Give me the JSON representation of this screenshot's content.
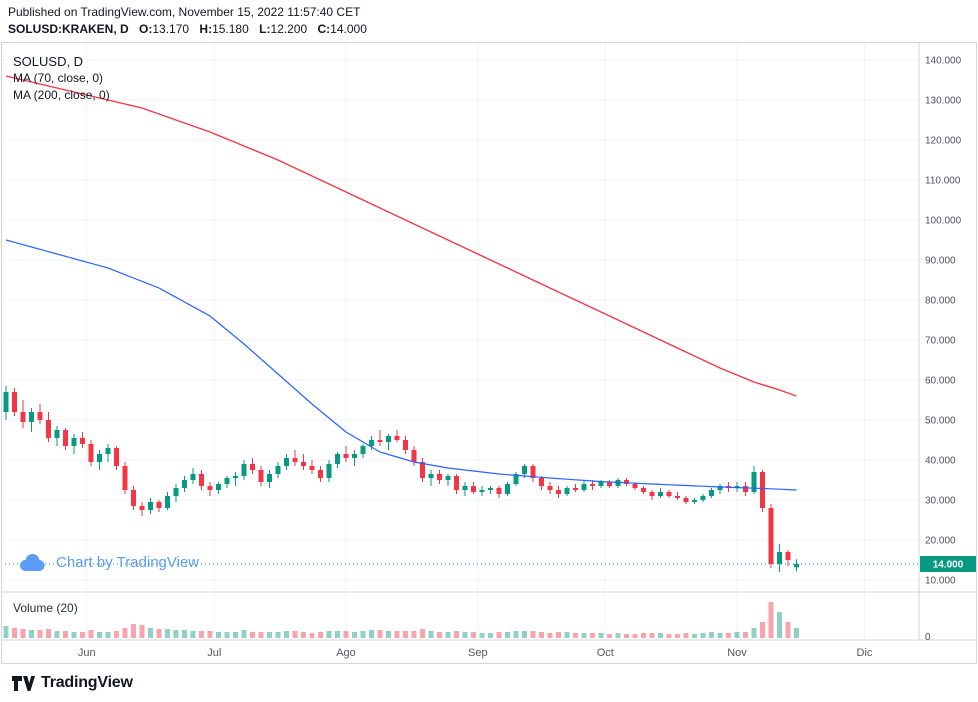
{
  "header": {
    "published": "Published on TradingView.com, November 15, 2022 11:57:40 CET",
    "symbol": "SOLUSD:KRAKEN, D",
    "ohlc": [
      {
        "label": "O:",
        "value": "13.170"
      },
      {
        "label": "H:",
        "value": "15.180"
      },
      {
        "label": "L:",
        "value": "12.200"
      },
      {
        "label": "C:",
        "value": "14.000"
      }
    ]
  },
  "legend": {
    "symbol": "SOLUSD, D",
    "ma70": "MA (70, close, 0)",
    "ma200": "MA (200, close, 0)"
  },
  "watermark": {
    "text": "Chart by TradingView"
  },
  "volume": {
    "label": "Volume (20)",
    "zero": "0"
  },
  "price_axis": {
    "last_price_label": "14.000"
  },
  "time_axis": {
    "months": [
      {
        "label": "Jun",
        "day": 19
      },
      {
        "label": "Jul",
        "day": 49
      },
      {
        "label": "Ago",
        "day": 80
      },
      {
        "label": "Sep",
        "day": 111
      },
      {
        "label": "Oct",
        "day": 141
      },
      {
        "label": "Nov",
        "day": 172
      },
      {
        "label": "Dic",
        "day": 202
      }
    ]
  },
  "footer": {
    "brand": "TradingView"
  },
  "colors": {
    "up": "#089981",
    "down": "#f23645",
    "ma70": "#f23645",
    "ma200": "#2962ff",
    "grid": "#f0f3fa",
    "border": "#d1d4dc",
    "watermark": "#5b9cf6",
    "axis_text": "#4c525e",
    "text": "#131722"
  },
  "chart_data": {
    "type": "candlestick",
    "symbol": "SOLUSD",
    "exchange": "KRAKEN",
    "interval": "D",
    "last": {
      "open": 13.17,
      "high": 15.18,
      "low": 12.2,
      "close": 14.0
    },
    "last_price": 14.0,
    "y_ticks": [
      140,
      130,
      120,
      110,
      100,
      90,
      80,
      70,
      60,
      50,
      40,
      30,
      20,
      10
    ],
    "ylim": [
      0,
      144.5
    ],
    "grid": true,
    "days_per_candle": 2,
    "candle_format": [
      "open",
      "high",
      "low",
      "close",
      "volume_rel"
    ],
    "candles": [
      [
        52,
        58.5,
        50,
        57,
        12
      ],
      [
        57,
        58,
        51,
        52,
        10
      ],
      [
        52,
        55,
        48,
        49.5,
        9
      ],
      [
        49.5,
        53,
        47,
        52,
        8
      ],
      [
        52,
        54,
        49,
        50,
        8
      ],
      [
        50,
        52,
        44.5,
        45.5,
        9
      ],
      [
        45.5,
        48.5,
        43.5,
        47.5,
        7
      ],
      [
        47.5,
        48,
        42.5,
        43.5,
        7
      ],
      [
        43.5,
        46.5,
        41.5,
        45.5,
        6
      ],
      [
        45.5,
        47,
        43,
        44,
        6
      ],
      [
        44,
        45,
        38.5,
        39.5,
        8
      ],
      [
        39.5,
        42.5,
        37.5,
        41.5,
        6
      ],
      [
        41.5,
        44,
        39.5,
        43,
        6
      ],
      [
        43,
        43.5,
        37.5,
        38.5,
        7
      ],
      [
        38.5,
        39.5,
        31.5,
        32.5,
        10
      ],
      [
        32.5,
        33.5,
        27.5,
        28.5,
        14
      ],
      [
        28.5,
        29.5,
        26,
        27.5,
        13
      ],
      [
        27.5,
        30.5,
        26.5,
        29.5,
        10
      ],
      [
        29.5,
        30,
        27,
        28,
        9
      ],
      [
        28,
        32,
        27.5,
        31,
        9
      ],
      [
        31,
        34,
        29.5,
        33,
        8
      ],
      [
        33,
        36,
        32,
        35,
        8
      ],
      [
        35,
        38,
        34,
        36.5,
        7
      ],
      [
        36.5,
        37.5,
        32.5,
        33.5,
        7
      ],
      [
        33.5,
        34.5,
        31,
        32.5,
        7
      ],
      [
        32.5,
        34.5,
        31.5,
        34,
        6
      ],
      [
        34,
        36,
        33,
        35.5,
        6
      ],
      [
        35.5,
        37,
        33.5,
        36,
        6
      ],
      [
        36,
        40,
        35,
        39,
        8
      ],
      [
        39,
        40.5,
        36.5,
        37.5,
        6
      ],
      [
        37.5,
        38.5,
        33.5,
        34.5,
        6
      ],
      [
        34.5,
        37.5,
        33,
        36.5,
        6
      ],
      [
        36.5,
        39.5,
        35.5,
        38.5,
        6
      ],
      [
        38.5,
        41.5,
        37.5,
        40.5,
        7
      ],
      [
        40.5,
        42.5,
        38.5,
        39.5,
        7
      ],
      [
        39.5,
        41.5,
        37.5,
        38.5,
        6
      ],
      [
        38.5,
        40,
        36.5,
        37.5,
        5
      ],
      [
        37.5,
        38.5,
        34.5,
        35.5,
        6
      ],
      [
        35.5,
        40,
        34.5,
        39,
        7
      ],
      [
        39,
        42,
        38,
        41.5,
        7
      ],
      [
        41.5,
        43.5,
        39.5,
        40.5,
        7
      ],
      [
        40.5,
        42.5,
        38.5,
        41.5,
        6
      ],
      [
        41.5,
        44,
        40.5,
        43.5,
        7
      ],
      [
        43.5,
        46,
        42.5,
        45,
        8
      ],
      [
        45,
        47.5,
        43.5,
        44.5,
        8
      ],
      [
        44.5,
        46.5,
        42.5,
        46,
        7
      ],
      [
        46,
        47.5,
        44.5,
        45,
        7
      ],
      [
        45,
        46,
        41.5,
        42.5,
        7
      ],
      [
        42.5,
        43.5,
        38.5,
        39.5,
        7
      ],
      [
        39.5,
        40.5,
        34.5,
        35.5,
        9
      ],
      [
        35.5,
        37.5,
        33.5,
        36.5,
        7
      ],
      [
        36.5,
        37.5,
        34,
        35,
        6
      ],
      [
        35,
        36.5,
        33.5,
        36,
        6
      ],
      [
        36,
        36.5,
        31.5,
        32.5,
        7
      ],
      [
        32.5,
        34.5,
        31,
        33.5,
        6
      ],
      [
        33.5,
        34.5,
        31.5,
        32,
        6
      ],
      [
        32,
        33.5,
        31,
        32.5,
        5
      ],
      [
        32.5,
        33.5,
        31.5,
        33,
        5
      ],
      [
        33,
        33.5,
        30.5,
        31.5,
        6
      ],
      [
        31.5,
        34.5,
        31,
        34,
        6
      ],
      [
        34,
        37,
        33.5,
        36.5,
        7
      ],
      [
        36.5,
        39,
        35.5,
        38.5,
        7
      ],
      [
        38.5,
        39,
        34.5,
        35.5,
        7
      ],
      [
        35.5,
        36,
        32.5,
        33.5,
        6
      ],
      [
        33.5,
        34.5,
        31.5,
        32.5,
        5
      ],
      [
        32.5,
        33.5,
        30.5,
        31.5,
        6
      ],
      [
        31.5,
        33.5,
        31,
        33,
        6
      ],
      [
        33,
        34,
        32,
        32.5,
        5
      ],
      [
        32.5,
        35,
        32,
        34,
        5
      ],
      [
        34,
        35,
        32.5,
        33.5,
        5
      ],
      [
        33.5,
        35,
        33,
        34.5,
        5
      ],
      [
        34.5,
        35,
        33,
        33.5,
        4
      ],
      [
        33.5,
        35.5,
        33,
        35,
        5
      ],
      [
        35,
        35.5,
        33.5,
        34,
        4
      ],
      [
        34,
        34.5,
        32.5,
        33,
        4
      ],
      [
        33,
        33.5,
        31.5,
        32,
        5
      ],
      [
        32,
        32.5,
        30,
        31,
        5
      ],
      [
        31,
        33,
        30.5,
        32,
        5
      ],
      [
        32,
        32.5,
        30.5,
        31,
        4
      ],
      [
        31,
        32,
        30,
        30.5,
        4
      ],
      [
        30.5,
        31,
        29,
        29.5,
        5
      ],
      [
        29.5,
        30.5,
        29,
        30,
        4
      ],
      [
        30,
        31.5,
        29.5,
        31,
        5
      ],
      [
        31,
        33,
        30.5,
        32.5,
        6
      ],
      [
        32.5,
        34,
        31.5,
        33.5,
        5
      ],
      [
        33.5,
        34.5,
        32,
        33,
        5
      ],
      [
        33,
        34.5,
        32,
        33.5,
        6
      ],
      [
        33.5,
        34.5,
        31,
        32,
        6
      ],
      [
        32,
        38.5,
        31.5,
        37,
        10
      ],
      [
        37,
        37.5,
        27,
        28,
        16
      ],
      [
        28,
        29,
        13,
        14,
        36
      ],
      [
        14,
        19,
        12,
        17,
        26
      ],
      [
        17,
        17.5,
        13.5,
        15,
        16
      ],
      [
        13.17,
        15.18,
        12.2,
        14,
        10
      ]
    ],
    "overlays": [
      {
        "name": "MA70",
        "period": 70,
        "source": "close",
        "color_key": "ma70",
        "width": 1.4,
        "points": [
          [
            0,
            136
          ],
          [
            8,
            132
          ],
          [
            16,
            128
          ],
          [
            24,
            122
          ],
          [
            32,
            115
          ],
          [
            40,
            107
          ],
          [
            48,
            99
          ],
          [
            56,
            91
          ],
          [
            64,
            83
          ],
          [
            72,
            75
          ],
          [
            78,
            69
          ],
          [
            84,
            63
          ],
          [
            88,
            59.5
          ],
          [
            91,
            57.5
          ],
          [
            93,
            56
          ]
        ]
      },
      {
        "name": "MA200",
        "period": 200,
        "source": "close",
        "color_key": "ma200",
        "width": 1.2,
        "points": [
          [
            0,
            95
          ],
          [
            6,
            91.5
          ],
          [
            12,
            88
          ],
          [
            18,
            83
          ],
          [
            24,
            76
          ],
          [
            28,
            69
          ],
          [
            32,
            61.5
          ],
          [
            36,
            54
          ],
          [
            40,
            47
          ],
          [
            44,
            42
          ],
          [
            48,
            39.5
          ],
          [
            52,
            38
          ],
          [
            58,
            36.5
          ],
          [
            64,
            35.5
          ],
          [
            70,
            34.6
          ],
          [
            78,
            33.8
          ],
          [
            86,
            33.1
          ],
          [
            90,
            32.8
          ],
          [
            93,
            32.5
          ]
        ]
      }
    ]
  }
}
